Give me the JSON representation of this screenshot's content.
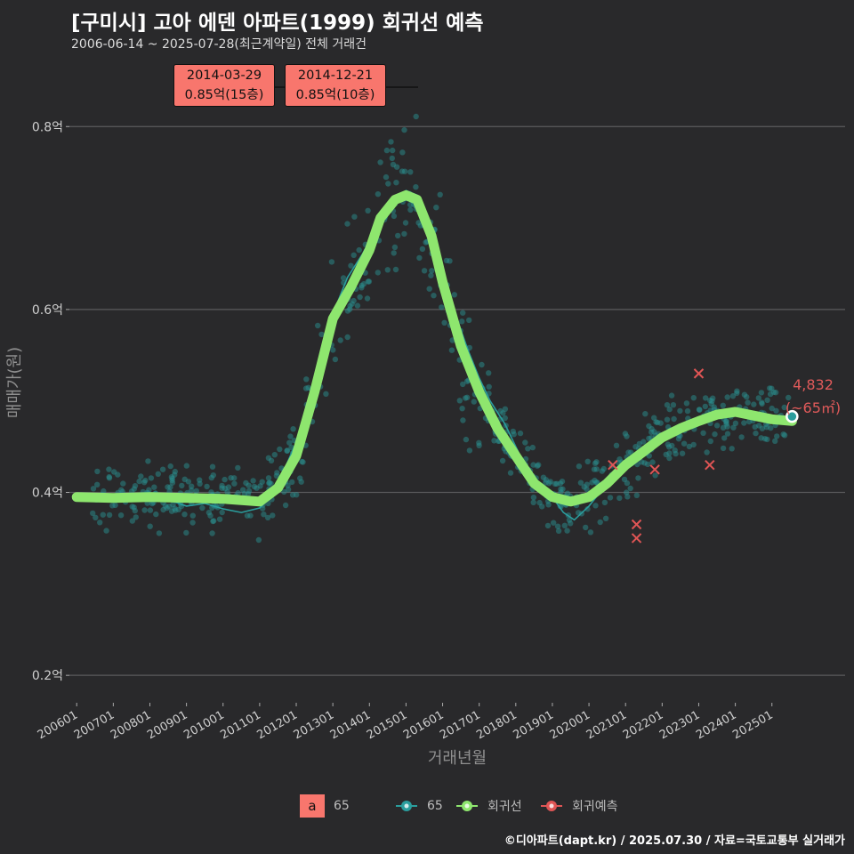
{
  "title": "[구미시] 고아 에덴 아파트(1999) 회귀선 예측",
  "subtitle": "2006-06-14 ~ 2025-07-28(최근계약일) 전체 거래건",
  "footer": "©디아파트(dapt.kr) / 2025.07.30 / 자료=국토교통부 실거래가",
  "colors": {
    "background": "#29292b",
    "grid": "#5a5a5c",
    "scatter": "#2a8f8f",
    "area_line": "#2a9d9d",
    "regression": "#8ee66e",
    "prediction": "#e05555",
    "annotation_fill": "#f8766d",
    "label_red": "#e05a5a"
  },
  "annotations": [
    {
      "date": "2014-03-29",
      "value": "0.85억(15층)"
    },
    {
      "date": "2014-12-21",
      "value": "0.85억(10층)"
    }
  ],
  "last_label": {
    "price": "4,832",
    "area": "(~65㎡)"
  },
  "legend": {
    "text_key": "a",
    "text_label": "65",
    "items": [
      {
        "name": "65",
        "color": "#2a9d9d"
      },
      {
        "name": "회귀선",
        "color": "#8ee66e"
      },
      {
        "name": "회귀예측",
        "color": "#e05555"
      }
    ]
  },
  "chart_data": {
    "type": "scatter",
    "xlabel": "거래년월",
    "ylabel": "매매가(원)",
    "x_ticks": [
      "200601",
      "200701",
      "200801",
      "200901",
      "201001",
      "201101",
      "201201",
      "201301",
      "201401",
      "201501",
      "201601",
      "201701",
      "201801",
      "201901",
      "202001",
      "202101",
      "202201",
      "202301",
      "202401",
      "202501"
    ],
    "y_ticks": [
      0.2,
      0.4,
      0.6,
      0.8
    ],
    "y_tick_labels": [
      "0.2억",
      "0.4억",
      "0.6억",
      "0.8억"
    ],
    "xlim": [
      2005.8,
      2027.0
    ],
    "ylim": [
      0.17,
      0.88
    ],
    "regression": [
      [
        2006.0,
        0.395
      ],
      [
        2007.0,
        0.394
      ],
      [
        2008.0,
        0.395
      ],
      [
        2009.0,
        0.394
      ],
      [
        2010.0,
        0.393
      ],
      [
        2011.0,
        0.39
      ],
      [
        2011.5,
        0.405
      ],
      [
        2012.0,
        0.44
      ],
      [
        2012.5,
        0.51
      ],
      [
        2013.0,
        0.59
      ],
      [
        2013.5,
        0.625
      ],
      [
        2014.0,
        0.665
      ],
      [
        2014.3,
        0.7
      ],
      [
        2014.7,
        0.72
      ],
      [
        2015.0,
        0.725
      ],
      [
        2015.3,
        0.72
      ],
      [
        2015.7,
        0.68
      ],
      [
        2016.0,
        0.63
      ],
      [
        2016.5,
        0.56
      ],
      [
        2017.0,
        0.51
      ],
      [
        2017.5,
        0.47
      ],
      [
        2018.0,
        0.44
      ],
      [
        2018.5,
        0.41
      ],
      [
        2019.0,
        0.395
      ],
      [
        2019.5,
        0.39
      ],
      [
        2020.0,
        0.395
      ],
      [
        2020.5,
        0.41
      ],
      [
        2021.0,
        0.43
      ],
      [
        2021.5,
        0.445
      ],
      [
        2022.0,
        0.46
      ],
      [
        2022.5,
        0.47
      ],
      [
        2023.0,
        0.478
      ],
      [
        2023.5,
        0.485
      ],
      [
        2024.0,
        0.488
      ],
      [
        2024.5,
        0.484
      ],
      [
        2025.0,
        0.48
      ],
      [
        2025.55,
        0.478
      ]
    ],
    "series_65_line": [
      [
        2006.0,
        0.395
      ],
      [
        2006.5,
        0.393
      ],
      [
        2007.0,
        0.392
      ],
      [
        2007.5,
        0.39
      ],
      [
        2008.0,
        0.396
      ],
      [
        2008.5,
        0.392
      ],
      [
        2009.0,
        0.385
      ],
      [
        2009.5,
        0.388
      ],
      [
        2010.0,
        0.382
      ],
      [
        2010.5,
        0.378
      ],
      [
        2011.0,
        0.383
      ],
      [
        2011.3,
        0.395
      ],
      [
        2011.6,
        0.418
      ],
      [
        2012.0,
        0.455
      ],
      [
        2012.3,
        0.49
      ],
      [
        2012.7,
        0.54
      ],
      [
        2013.0,
        0.595
      ],
      [
        2013.4,
        0.635
      ],
      [
        2013.8,
        0.66
      ],
      [
        2014.2,
        0.69
      ],
      [
        2014.6,
        0.712
      ],
      [
        2015.0,
        0.73
      ],
      [
        2015.3,
        0.725
      ],
      [
        2015.6,
        0.7
      ],
      [
        2016.0,
        0.64
      ],
      [
        2016.3,
        0.6
      ],
      [
        2016.7,
        0.555
      ],
      [
        2017.0,
        0.525
      ],
      [
        2017.3,
        0.5
      ],
      [
        2017.7,
        0.475
      ],
      [
        2018.0,
        0.45
      ],
      [
        2018.3,
        0.425
      ],
      [
        2018.7,
        0.408
      ],
      [
        2019.0,
        0.395
      ],
      [
        2019.3,
        0.378
      ],
      [
        2019.6,
        0.37
      ],
      [
        2020.0,
        0.385
      ],
      [
        2020.4,
        0.405
      ],
      [
        2020.8,
        0.42
      ],
      [
        2021.2,
        0.43
      ],
      [
        2021.6,
        0.445
      ],
      [
        2022.0,
        0.46
      ],
      [
        2022.4,
        0.47
      ],
      [
        2022.8,
        0.476
      ],
      [
        2023.2,
        0.48
      ],
      [
        2023.6,
        0.486
      ],
      [
        2024.0,
        0.49
      ],
      [
        2024.4,
        0.485
      ],
      [
        2024.8,
        0.484
      ],
      [
        2025.2,
        0.48
      ],
      [
        2025.55,
        0.478
      ]
    ],
    "predictions": [
      [
        2020.65,
        0.43
      ],
      [
        2021.3,
        0.365
      ],
      [
        2021.3,
        0.35
      ],
      [
        2021.8,
        0.425
      ],
      [
        2023.0,
        0.53
      ],
      [
        2023.3,
        0.43
      ]
    ],
    "last_point": [
      2025.55,
      0.483
    ],
    "scatter_note": "≈700 individual transactions clustered around the regression curve"
  }
}
